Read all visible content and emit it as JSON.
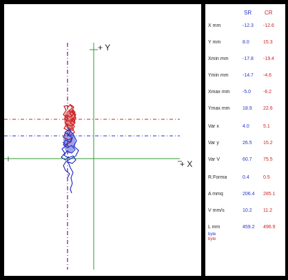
{
  "plot": {
    "y_axis_label": "+ Y",
    "x_axis_label": "+ X",
    "colors": {
      "sr": "#2233cc",
      "cr": "#cc2222",
      "axes": "#2f9a2f",
      "y_dashdot": "#9a2f9a"
    }
  },
  "table": {
    "headers": {
      "sr": "SR",
      "cr": "CR"
    },
    "rows": [
      {
        "label": "X mm",
        "sr": "-12.3",
        "cr": "-12.6"
      },
      {
        "label": "Y mm",
        "sr": "8.0",
        "cr": "15.3"
      },
      {
        "label": "Xmin mm",
        "sr": "-17.8",
        "cr": "-19.4"
      },
      {
        "label": "Ymin mm",
        "sr": "-14.7",
        "cr": "-4.6"
      },
      {
        "label": "Xmax mm",
        "sr": "-5.0",
        "cr": "-6.2"
      },
      {
        "label": "Ymax mm",
        "sr": "18.9",
        "cr": "22.6"
      },
      {
        "label": "Var x",
        "sr": "4.0",
        "cr": "5.1"
      },
      {
        "label": "Var y",
        "sr": "26.5",
        "cr": "15.2"
      },
      {
        "label": "Var V",
        "sr": "60.7",
        "cr": "75.5"
      },
      {
        "label": "R.Forma",
        "sr": "0.4",
        "cr": "0.5"
      },
      {
        "label": "A mmq",
        "sr": "206.4",
        "cr": "285.1"
      },
      {
        "label": "V mm/s",
        "sr": "10.2",
        "cr": "11.2"
      },
      {
        "label": "L mm",
        "sr": "459.2",
        "cr": "496.9"
      }
    ],
    "footnotes": {
      "line1": "byte",
      "line2": "byte"
    }
  }
}
